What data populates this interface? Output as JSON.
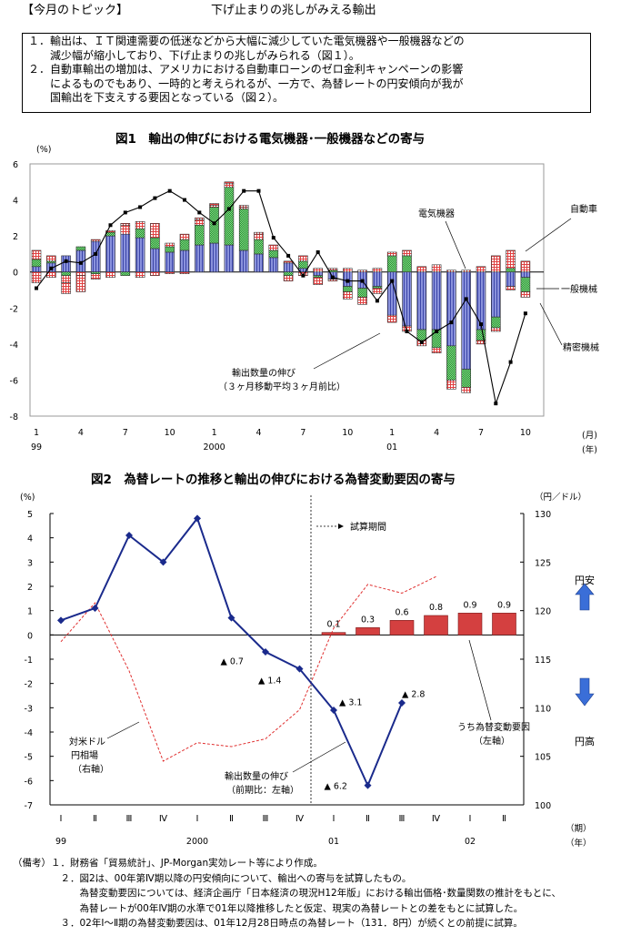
{
  "header": {
    "topic": "【今月のトピック】",
    "subtitle": "下げ止まりの兆しがみえる輸出"
  },
  "summary": [
    "１．輸出は、ＩＴ関連需要の低迷などから大幅に減少していた電気機器や一般機器などの",
    "　　減少幅が縮小しており、下げ止まりの兆しがみられる（図１）。",
    "２．自動車輸出の増加は、アメリカにおける自動車ローンのゼロ金利キャンペーンの影響",
    "　　によるものでもあり、一時的と考えられるが、一方で、為替レートの円安傾向が我が",
    "　　国輸出を下支えする要因となっている（図２）。"
  ],
  "chart1": {
    "title": "図1　輸出の伸びにおける電気機器･一般機器などの寄与",
    "unit": "(%)",
    "y_ticks": [
      "6",
      "4",
      "2",
      "0",
      "-2",
      "-4",
      "-6",
      "-8"
    ],
    "x_ticks": [
      {
        "label": "1",
        "i": 0
      },
      {
        "label": "4",
        "i": 3
      },
      {
        "label": "7",
        "i": 6
      },
      {
        "label": "10",
        "i": 9
      },
      {
        "label": "1",
        "i": 12
      },
      {
        "label": "4",
        "i": 15
      },
      {
        "label": "7",
        "i": 18
      },
      {
        "label": "10",
        "i": 21
      },
      {
        "label": "1",
        "i": 24
      },
      {
        "label": "4",
        "i": 27
      },
      {
        "label": "7",
        "i": 30
      },
      {
        "label": "10",
        "i": 33
      }
    ],
    "year_labels": [
      {
        "label": "99",
        "i": 0
      },
      {
        "label": "2000",
        "i": 12
      },
      {
        "label": "01",
        "i": 24
      }
    ],
    "x_unit_month": "(月)",
    "x_unit_year": "(年)",
    "labels": {
      "electric": "電気機器",
      "auto": "自動車",
      "general": "一般機械",
      "precision": "精密機械",
      "line1": "輸出数量の伸び",
      "line2": "（３ヶ月移動平均３ヶ月前比）"
    }
  },
  "chart2": {
    "title": "図2　為替レートの推移と輸出の伸びにおける為替変動要因の寄与",
    "left_unit": "(%)",
    "right_unit": "（円／ドル）",
    "left_ticks": [
      "5",
      "4",
      "3",
      "2",
      "1",
      "0",
      "-1",
      "-2",
      "-3",
      "-4",
      "-5",
      "-6",
      "-7"
    ],
    "right_ticks": [
      "130",
      "125",
      "120",
      "115",
      "110",
      "105",
      "100"
    ],
    "quarters": [
      "Ⅰ",
      "Ⅱ",
      "Ⅲ",
      "Ⅳ",
      "Ⅰ",
      "Ⅱ",
      "Ⅲ",
      "Ⅳ",
      "Ⅰ",
      "Ⅱ",
      "Ⅲ",
      "Ⅳ",
      "Ⅰ",
      "Ⅱ"
    ],
    "years": [
      {
        "label": "99",
        "i": 0
      },
      {
        "label": "2000",
        "i": 4
      },
      {
        "label": "01",
        "i": 8
      },
      {
        "label": "02",
        "i": 12
      }
    ],
    "x_unit_q": "（期）",
    "x_unit_y": "（年）",
    "trial": "試算期間",
    "yen_weak": "円安",
    "yen_strong": "円高",
    "neg_labels": [
      {
        "text": "▲ 0.7",
        "i": 5,
        "v": -0.7
      },
      {
        "text": "▲ 1.4",
        "i": 6,
        "v": -1.4
      },
      {
        "text": "▲ 3.1",
        "i": 8,
        "v": -3.1
      },
      {
        "text": "▲ 6.2",
        "i": 9,
        "v": -6.2
      },
      {
        "text": "▲ 2.8",
        "i": 10,
        "v": -2.8
      }
    ],
    "labels": {
      "rate1": "対米ドル",
      "rate2": "円相場",
      "rate3": "（右軸）",
      "line1": "輸出数量の伸び",
      "line2": "（前期比：左軸）",
      "bar1": "うち為替変動要因",
      "bar2": "（左軸）"
    }
  },
  "notes": [
    "（備考）１．財務省「貿易統計」、JP-Morgan実効レート等により作成。",
    "　　　　　２．図2は、00年第Ⅳ期以降の円安傾向について、輸出への寄与を試算したもの。",
    "　　　　　　　為替変動要因については、経済企画庁「日本経済の現況H12年版」における輸出価格･数量関数の推計をもとに、",
    "　　　　　　　為替レートが00年Ⅳ期の水準で01年以降推移したと仮定、現実の為替レートとの差をもとに試算した。",
    "　　　　　３．02年Ⅰ～Ⅱ期の為替変動要因は、01年12月28日時点の為替レート（131．8円）が続くとの前提に試算。"
  ],
  "chart_data": [
    {
      "type": "bar",
      "title": "図1　輸出の伸びにおける電気機器･一般機器などの寄与",
      "ylabel": "(%)",
      "ylim": [
        -8,
        6
      ],
      "stacked": true,
      "x": [
        "99/1",
        "99/2",
        "99/3",
        "99/4",
        "99/5",
        "99/6",
        "99/7",
        "99/8",
        "99/9",
        "99/10",
        "99/11",
        "99/12",
        "00/1",
        "00/2",
        "00/3",
        "00/4",
        "00/5",
        "00/6",
        "00/7",
        "00/8",
        "00/9",
        "00/10",
        "00/11",
        "00/12",
        "01/1",
        "01/2",
        "01/3",
        "01/4",
        "01/5",
        "01/6",
        "01/7",
        "01/8",
        "01/9",
        "01/10"
      ],
      "series": [
        {
          "name": "電気機器",
          "color": "#6e78c8",
          "values": [
            0.3,
            0.5,
            0.9,
            1.2,
            1.7,
            2.0,
            2.1,
            1.9,
            1.3,
            1.1,
            1.2,
            1.5,
            1.6,
            1.5,
            1.2,
            1.0,
            0.8,
            0.5,
            0.2,
            -0.2,
            -0.4,
            -0.8,
            -0.9,
            -0.8,
            -2.4,
            -3.0,
            -3.2,
            -3.2,
            -4.1,
            -5.4,
            -3.2,
            -2.5,
            -0.8,
            -0.3
          ]
        },
        {
          "name": "一般機械",
          "color": "#2fa84a",
          "values": [
            0.4,
            0.1,
            -0.2,
            0.2,
            -0.1,
            0.2,
            -0.2,
            0.5,
            0.6,
            0.3,
            0.6,
            1.1,
            2.0,
            3.2,
            2.3,
            0.8,
            0.4,
            -0.2,
            0.4,
            -0.1,
            0.1,
            -0.3,
            -0.5,
            -0.1,
            0.9,
            0.9,
            -0.6,
            -1.0,
            -1.9,
            -1.0,
            -0.6,
            -0.6,
            0.2,
            -0.8
          ]
        },
        {
          "name": "自動車",
          "color": "#e04848",
          "values": [
            0.5,
            0.3,
            -0.4,
            -0.2,
            0.1,
            0.1,
            0.5,
            0.4,
            0.8,
            0.2,
            0.3,
            0.3,
            0.1,
            0.2,
            0.1,
            0.3,
            0.3,
            0.1,
            0.3,
            0.2,
            0.1,
            0.2,
            0.1,
            0.2,
            0.2,
            0.3,
            0.3,
            0.4,
            0.1,
            0.1,
            0.3,
            0.9,
            1.0,
            0.6
          ]
        },
        {
          "name": "精密機械",
          "color": "#e04848",
          "values": [
            -0.6,
            -0.3,
            -0.6,
            -0.9,
            -0.3,
            -0.3,
            0.1,
            -0.3,
            -0.2,
            -0.1,
            -0.1,
            0.1,
            0.1,
            0.1,
            0.1,
            0.1,
            0.0,
            -0.3,
            -0.2,
            -0.4,
            -0.1,
            -0.4,
            -0.4,
            -0.3,
            -0.4,
            -0.3,
            -0.3,
            -0.3,
            -0.5,
            -0.3,
            -0.2,
            -0.2,
            -0.2,
            -0.3
          ]
        }
      ],
      "line": {
        "name": "輸出数量の伸び（３ヶ月移動平均３ヶ月前比）",
        "values": [
          -0.9,
          0.2,
          0.6,
          0.5,
          1.0,
          2.6,
          3.3,
          3.6,
          4.1,
          4.5,
          4.0,
          3.3,
          2.7,
          3.5,
          4.5,
          4.5,
          1.9,
          0.9,
          -0.2,
          1.1,
          -0.3,
          -0.5,
          -0.5,
          -1.6,
          -0.5,
          -3.3,
          -3.9,
          -3.3,
          -2.8,
          -1.5,
          -2.9,
          -7.3,
          -5.0,
          -2.3
        ]
      }
    },
    {
      "type": "line",
      "title": "図2　為替レートの推移と輸出の伸びにおける為替変動要因の寄与",
      "x": [
        "99 Ⅰ",
        "99 Ⅱ",
        "99 Ⅲ",
        "99 Ⅳ",
        "2000 Ⅰ",
        "2000 Ⅱ",
        "2000 Ⅲ",
        "2000 Ⅳ",
        "01 Ⅰ",
        "01 Ⅱ",
        "01 Ⅲ",
        "01 Ⅳ",
        "02 Ⅰ",
        "02 Ⅱ"
      ],
      "ylim_left": [
        -7,
        5
      ],
      "ylim_right": [
        100,
        130
      ],
      "series": [
        {
          "name": "輸出数量の伸び（前期比：左軸）",
          "axis": "left",
          "color": "#1a2a8c",
          "values": [
            0.6,
            1.1,
            4.1,
            3.0,
            4.8,
            0.7,
            -0.7,
            -1.4,
            -3.1,
            -6.2,
            -2.8,
            null,
            null,
            null
          ]
        },
        {
          "name": "対米ドル円相場（右軸）",
          "axis": "right",
          "color": "#e03030",
          "values": [
            116.8,
            120.8,
            113.8,
            104.5,
            106.4,
            106.0,
            106.8,
            109.8,
            118.2,
            122.7,
            121.8,
            123.5,
            null,
            null
          ]
        },
        {
          "name": "うち為替変動要因（左軸）",
          "axis": "left",
          "type": "bar",
          "color": "#d44040",
          "values": [
            null,
            null,
            null,
            null,
            null,
            null,
            null,
            null,
            0.1,
            0.3,
            0.6,
            0.8,
            0.9,
            0.9
          ]
        }
      ]
    }
  ]
}
